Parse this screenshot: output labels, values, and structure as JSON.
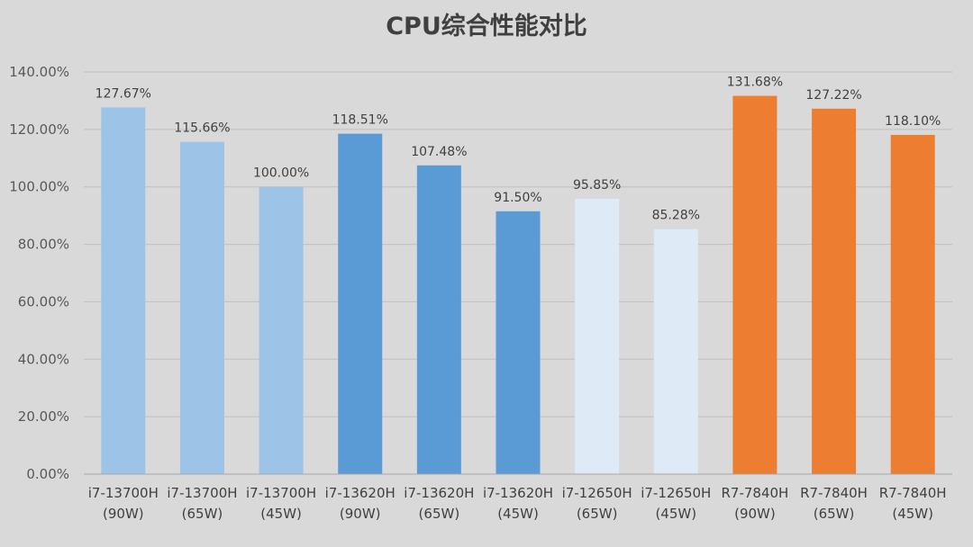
{
  "chart_data": {
    "type": "bar",
    "title": "CPU综合性能对比",
    "xlabel": "",
    "ylabel": "",
    "ylim": [
      0,
      140
    ],
    "y_ticks": [
      "0.00%",
      "20.00%",
      "40.00%",
      "60.00%",
      "80.00%",
      "100.00%",
      "120.00%",
      "140.00%"
    ],
    "grid": true,
    "legend": "none",
    "categories": [
      [
        "i7-13700H",
        "(90W)"
      ],
      [
        "i7-13700H",
        "(65W)"
      ],
      [
        "i7-13700H",
        "(45W)"
      ],
      [
        "i7-13620H",
        "(90W)"
      ],
      [
        "i7-13620H",
        "(65W)"
      ],
      [
        "i7-13620H",
        "(45W)"
      ],
      [
        "i7-12650H",
        "(65W)"
      ],
      [
        "i7-12650H",
        "(45W)"
      ],
      [
        "R7-7840H",
        "(90W)"
      ],
      [
        "R7-7840H",
        "(65W)"
      ],
      [
        "R7-7840H",
        "(45W)"
      ]
    ],
    "values": [
      127.67,
      115.66,
      100.0,
      118.51,
      107.48,
      91.5,
      95.85,
      85.28,
      131.68,
      127.22,
      118.1
    ],
    "data_labels": [
      "127.67%",
      "115.66%",
      "100.00%",
      "118.51%",
      "107.48%",
      "91.50%",
      "95.85%",
      "85.28%",
      "131.68%",
      "127.22%",
      "118.10%"
    ],
    "bar_colors": [
      "#9dc3e6",
      "#9dc3e6",
      "#9dc3e6",
      "#5b9bd5",
      "#5b9bd5",
      "#5b9bd5",
      "#deebf7",
      "#deebf7",
      "#ed7d31",
      "#ed7d31",
      "#ed7d31"
    ],
    "colors": {
      "background": "#d9d9d9",
      "gridline": "#bfbfbf",
      "axis": "#a6a6a6"
    }
  }
}
